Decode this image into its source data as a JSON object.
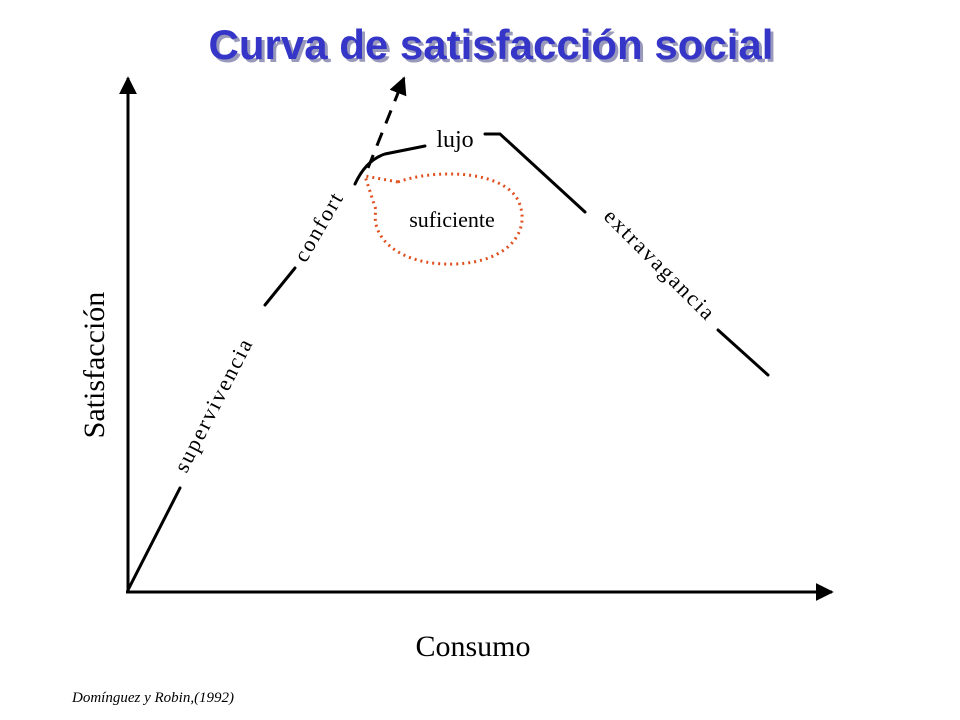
{
  "title": "Curva de satisfacción social",
  "axes": {
    "y_label": "Satisfacción",
    "x_label": "Consumo"
  },
  "segments": {
    "survival": "supervivencia",
    "comfort": "confort",
    "luxury": "lujo",
    "extravagance": "extravagancia"
  },
  "callout": "suficiente",
  "source": "Domínguez y Robin,(1992)"
}
